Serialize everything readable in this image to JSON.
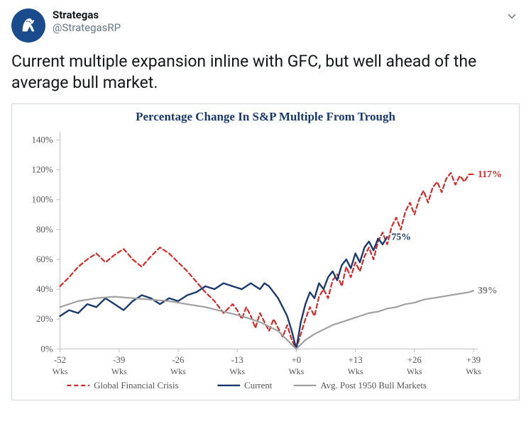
{
  "tweet": {
    "display_name": "Strategas",
    "handle": "@StrategasRP",
    "text": "Current multiple expansion inline with GFC, but well ahead of the average bull market."
  },
  "chart": {
    "type": "line",
    "title": "Percentage Change In S&P Multiple From Trough",
    "title_color": "#1a3a6e",
    "title_fontsize": 17,
    "background_color": "#ffffff",
    "border_color": "#cfd6dc",
    "axis_color": "#bfbfbf",
    "tick_color": "#bfbfbf",
    "tick_label_color": "#555555",
    "xlim": [
      -52,
      40
    ],
    "ylim": [
      0,
      145
    ],
    "yticks": [
      0,
      20,
      40,
      60,
      80,
      100,
      120,
      140
    ],
    "ytick_labels": [
      "0%",
      "20%",
      "40%",
      "60%",
      "80%",
      "100%",
      "120%",
      "140%"
    ],
    "xticks": [
      -52,
      -39,
      -26,
      -13,
      0,
      13,
      26,
      39
    ],
    "xtick_labels": [
      "-52",
      "-39",
      "-26",
      "-13",
      "+0",
      "+13",
      "+26",
      "+39"
    ],
    "xtick_sublabel": "Wks",
    "series": [
      {
        "name": "Global Financial Crisis",
        "color": "#d62828",
        "dash": "6,4",
        "width": 2.2,
        "end_label": "117%",
        "end_label_color": "#d62828",
        "data": [
          [
            -52,
            42
          ],
          [
            -50,
            48
          ],
          [
            -48,
            55
          ],
          [
            -46,
            60
          ],
          [
            -44,
            64
          ],
          [
            -42,
            58
          ],
          [
            -40,
            63
          ],
          [
            -38,
            67
          ],
          [
            -36,
            60
          ],
          [
            -34,
            55
          ],
          [
            -32,
            62
          ],
          [
            -30,
            68
          ],
          [
            -28,
            64
          ],
          [
            -26,
            58
          ],
          [
            -24,
            52
          ],
          [
            -22,
            45
          ],
          [
            -20,
            38
          ],
          [
            -18,
            32
          ],
          [
            -16,
            24
          ],
          [
            -14,
            30
          ],
          [
            -13,
            26
          ],
          [
            -12,
            20
          ],
          [
            -11,
            28
          ],
          [
            -10,
            22
          ],
          [
            -9,
            14
          ],
          [
            -8,
            24
          ],
          [
            -7,
            18
          ],
          [
            -6,
            12
          ],
          [
            -5,
            20
          ],
          [
            -4,
            14
          ],
          [
            -3,
            8
          ],
          [
            -2,
            16
          ],
          [
            -1,
            6
          ],
          [
            0,
            0
          ],
          [
            1,
            10
          ],
          [
            2,
            20
          ],
          [
            3,
            28
          ],
          [
            4,
            22
          ],
          [
            5,
            35
          ],
          [
            6,
            40
          ],
          [
            7,
            34
          ],
          [
            8,
            46
          ],
          [
            9,
            50
          ],
          [
            10,
            42
          ],
          [
            11,
            55
          ],
          [
            12,
            48
          ],
          [
            13,
            58
          ],
          [
            14,
            52
          ],
          [
            15,
            62
          ],
          [
            16,
            68
          ],
          [
            17,
            60
          ],
          [
            18,
            72
          ],
          [
            19,
            78
          ],
          [
            20,
            70
          ],
          [
            21,
            82
          ],
          [
            22,
            88
          ],
          [
            23,
            80
          ],
          [
            24,
            92
          ],
          [
            25,
            98
          ],
          [
            26,
            90
          ],
          [
            27,
            100
          ],
          [
            28,
            106
          ],
          [
            29,
            98
          ],
          [
            30,
            108
          ],
          [
            31,
            112
          ],
          [
            32,
            105
          ],
          [
            33,
            114
          ],
          [
            34,
            118
          ],
          [
            35,
            110
          ],
          [
            36,
            116
          ],
          [
            37,
            112
          ],
          [
            38,
            117
          ],
          [
            39,
            117
          ]
        ]
      },
      {
        "name": "Current",
        "color": "#1a3a6e",
        "dash": "",
        "width": 2.4,
        "end_label": "75%",
        "end_label_color": "#1a3a6e",
        "data": [
          [
            -52,
            22
          ],
          [
            -50,
            26
          ],
          [
            -48,
            24
          ],
          [
            -46,
            30
          ],
          [
            -44,
            28
          ],
          [
            -42,
            34
          ],
          [
            -40,
            30
          ],
          [
            -38,
            26
          ],
          [
            -36,
            32
          ],
          [
            -34,
            36
          ],
          [
            -32,
            34
          ],
          [
            -30,
            30
          ],
          [
            -28,
            34
          ],
          [
            -26,
            32
          ],
          [
            -24,
            36
          ],
          [
            -22,
            38
          ],
          [
            -20,
            42
          ],
          [
            -18,
            40
          ],
          [
            -16,
            44
          ],
          [
            -14,
            42
          ],
          [
            -12,
            40
          ],
          [
            -10,
            44
          ],
          [
            -9,
            42
          ],
          [
            -8,
            40
          ],
          [
            -7,
            44
          ],
          [
            -6,
            42
          ],
          [
            -5,
            38
          ],
          [
            -4,
            34
          ],
          [
            -3,
            28
          ],
          [
            -2,
            22
          ],
          [
            -1,
            12
          ],
          [
            0,
            0
          ],
          [
            1,
            18
          ],
          [
            2,
            30
          ],
          [
            3,
            38
          ],
          [
            4,
            34
          ],
          [
            5,
            44
          ],
          [
            6,
            40
          ],
          [
            7,
            48
          ],
          [
            8,
            52
          ],
          [
            9,
            46
          ],
          [
            10,
            56
          ],
          [
            11,
            60
          ],
          [
            12,
            54
          ],
          [
            13,
            64
          ],
          [
            14,
            58
          ],
          [
            15,
            68
          ],
          [
            16,
            72
          ],
          [
            17,
            66
          ],
          [
            18,
            74
          ],
          [
            19,
            70
          ],
          [
            20,
            75
          ]
        ]
      },
      {
        "name": "Avg. Post 1950 Bull Markets",
        "color": "#a0a0a0",
        "dash": "",
        "width": 2.2,
        "end_label": "39%",
        "end_label_color": "#808080",
        "data": [
          [
            -52,
            28
          ],
          [
            -48,
            32
          ],
          [
            -44,
            34
          ],
          [
            -40,
            35
          ],
          [
            -36,
            34
          ],
          [
            -32,
            33
          ],
          [
            -28,
            32
          ],
          [
            -24,
            30
          ],
          [
            -20,
            28
          ],
          [
            -16,
            25
          ],
          [
            -12,
            22
          ],
          [
            -8,
            18
          ],
          [
            -4,
            12
          ],
          [
            -2,
            6
          ],
          [
            0,
            0
          ],
          [
            2,
            6
          ],
          [
            4,
            10
          ],
          [
            6,
            13
          ],
          [
            8,
            16
          ],
          [
            10,
            18
          ],
          [
            12,
            20
          ],
          [
            14,
            22
          ],
          [
            16,
            24
          ],
          [
            18,
            25
          ],
          [
            20,
            27
          ],
          [
            22,
            28
          ],
          [
            24,
            30
          ],
          [
            26,
            31
          ],
          [
            28,
            33
          ],
          [
            30,
            34
          ],
          [
            32,
            35
          ],
          [
            34,
            36
          ],
          [
            36,
            37
          ],
          [
            38,
            38
          ],
          [
            39,
            39
          ]
        ]
      }
    ],
    "legend": {
      "items": [
        "Global Financial Crisis",
        "Current",
        "Avg. Post 1950 Bull Markets"
      ],
      "fontsize": 13
    }
  }
}
